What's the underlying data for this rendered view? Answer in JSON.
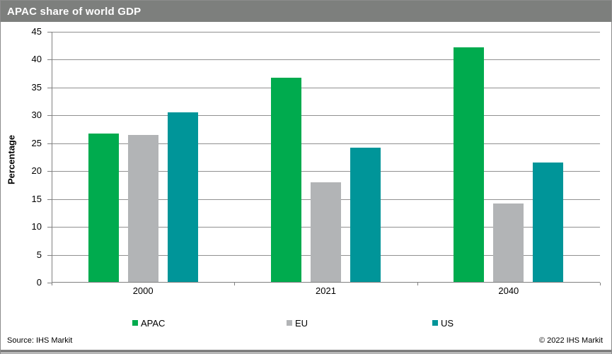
{
  "header": {
    "title": "APAC share of world GDP"
  },
  "footer": {
    "source": "Source: IHS Markit",
    "copyright": "© 2022  IHS Markit"
  },
  "colors": {
    "title_bar": "#7D7F7D",
    "grid": "#909090",
    "axis": "#808080",
    "bottom_bar": "#808080",
    "apac": "#00AB4E",
    "eu": "#B2B4B6",
    "us": "#009599"
  },
  "chart_data": {
    "type": "bar",
    "title": "APAC share of world GDP",
    "xlabel": "",
    "ylabel": "Percentage",
    "categories": [
      "2000",
      "2021",
      "2040"
    ],
    "series": [
      {
        "name": "APAC",
        "color": "#00AB4E",
        "values": [
          26.8,
          36.7,
          42.2
        ]
      },
      {
        "name": "EU",
        "color": "#B2B4B6",
        "values": [
          26.5,
          18.0,
          14.2
        ]
      },
      {
        "name": "US",
        "color": "#009599",
        "values": [
          30.5,
          24.2,
          21.6
        ]
      }
    ],
    "ylim": [
      0,
      45
    ],
    "ytick_step": 5,
    "yticks": [
      45,
      40,
      35,
      30,
      25,
      20,
      15,
      10,
      5,
      0
    ],
    "grid": true,
    "legend_position": "bottom"
  }
}
